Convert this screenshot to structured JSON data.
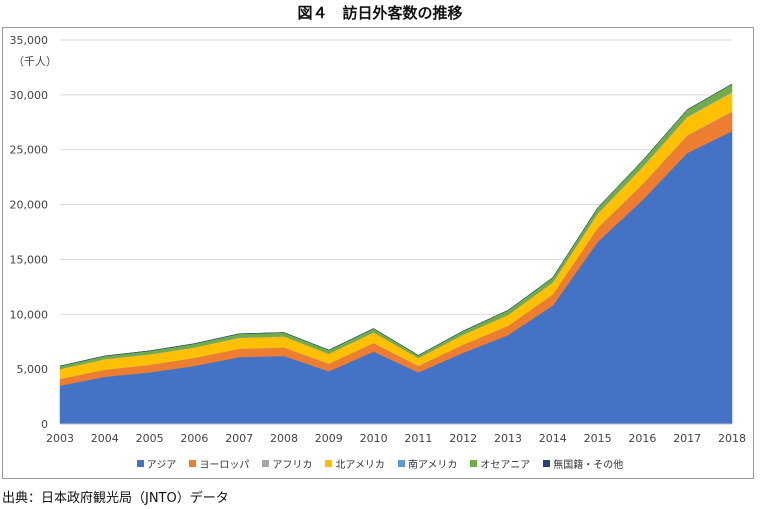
{
  "figure": {
    "title": "図４　訪日外客数の推移",
    "source": "出典：日本政府観光局（JNTO）データ"
  },
  "chart_data": {
    "type": "area",
    "stacked": true,
    "unit_label": "（千人）",
    "categories": [
      "2003",
      "2004",
      "2005",
      "2006",
      "2007",
      "2008",
      "2009",
      "2010",
      "2011",
      "2012",
      "2013",
      "2014",
      "2015",
      "2016",
      "2017",
      "2018"
    ],
    "ylim": [
      0,
      35000
    ],
    "yticks": [
      "0",
      "5,000",
      "10,000",
      "15,000",
      "20,000",
      "25,000",
      "30,000",
      "35,000"
    ],
    "grid": true,
    "legend_position": "bottom",
    "series": [
      {
        "name": "アジア",
        "color": "#4472C4",
        "values": [
          3500,
          4300,
          4700,
          5300,
          6100,
          6200,
          4800,
          6600,
          4700,
          6500,
          8100,
          10800,
          16600,
          20400,
          24700,
          26700
        ]
      },
      {
        "name": "ヨーロッパ",
        "color": "#ED7D31",
        "values": [
          600,
          650,
          680,
          720,
          750,
          770,
          690,
          780,
          580,
          730,
          830,
          990,
          1250,
          1420,
          1580,
          1750
        ]
      },
      {
        "name": "アフリカ",
        "color": "#A5A5A5",
        "values": [
          10,
          12,
          13,
          14,
          15,
          16,
          14,
          16,
          12,
          16,
          20,
          25,
          30,
          35,
          40,
          45
        ]
      },
      {
        "name": "北アメリカ",
        "color": "#FFC000",
        "values": [
          900,
          950,
          960,
          950,
          1000,
          1000,
          900,
          960,
          730,
          900,
          990,
          1100,
          1300,
          1550,
          1680,
          1750
        ]
      },
      {
        "name": "南アメリカ",
        "color": "#5B9BD5",
        "values": [
          30,
          32,
          33,
          35,
          37,
          38,
          32,
          35,
          25,
          35,
          40,
          50,
          60,
          70,
          80,
          90
        ]
      },
      {
        "name": "オセアニア",
        "color": "#70AD47",
        "values": [
          240,
          260,
          280,
          300,
          320,
          310,
          300,
          310,
          210,
          300,
          380,
          380,
          450,
          520,
          570,
          650
        ]
      },
      {
        "name": "無国籍・その他",
        "color": "#264478",
        "values": [
          5,
          5,
          5,
          5,
          5,
          5,
          5,
          5,
          5,
          5,
          5,
          5,
          5,
          5,
          5,
          5
        ]
      }
    ]
  }
}
